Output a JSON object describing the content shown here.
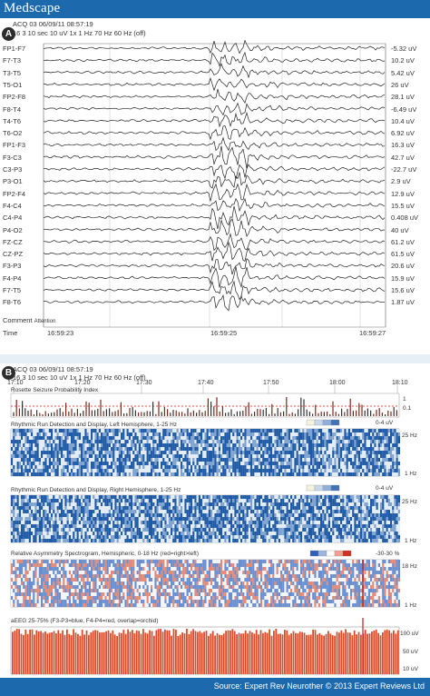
{
  "brand": {
    "logo": "Medscape"
  },
  "panelA": {
    "label": "A",
    "header_line1": "ACQ 03     06/09/11 08:57:19",
    "header_line2": "16  3  10 sec  10 uV  1x  1 Hz  70 Hz  60 Hz  (off)",
    "channels": [
      {
        "name": "FP1-F7",
        "value": "-5.32 uV"
      },
      {
        "name": "F7-T3",
        "value": "10.2 uV"
      },
      {
        "name": "T3-T5",
        "value": "5.42 uV"
      },
      {
        "name": "T5-O1",
        "value": "26 uV"
      },
      {
        "name": "FP2-F8",
        "value": "28.1 uV"
      },
      {
        "name": "F8-T4",
        "value": "-6.49 uV"
      },
      {
        "name": "T4-T6",
        "value": "10.4 uV"
      },
      {
        "name": "T6-O2",
        "value": "6.92 uV"
      },
      {
        "name": "FP1-F3",
        "value": "16.3 uV"
      },
      {
        "name": "F3-C3",
        "value": "42.7 uV"
      },
      {
        "name": "C3-P3",
        "value": "-22.7 uV"
      },
      {
        "name": "P3-O1",
        "value": "2.9 uV"
      },
      {
        "name": "FP2-F4",
        "value": "12.9 uV"
      },
      {
        "name": "F4-C4",
        "value": "15.5 uV"
      },
      {
        "name": "C4-P4",
        "value": "0.408 uV"
      },
      {
        "name": "P4-O2",
        "value": "40 uV"
      },
      {
        "name": "FZ-CZ",
        "value": "61.2 uV"
      },
      {
        "name": "CZ-PZ",
        "value": "61.5 uV"
      },
      {
        "name": "F3-P3",
        "value": "20.6 uV"
      },
      {
        "name": "F4-P4",
        "value": "15.9 uV"
      },
      {
        "name": "F7-T5",
        "value": "15.6 uV"
      },
      {
        "name": "F8-T6",
        "value": "1.87 uV"
      }
    ],
    "comment_label": "Comment",
    "comment_text": "Attention",
    "time_label": "Time",
    "times": [
      "16:59:23",
      "16:59:25",
      "16:59:27"
    ]
  },
  "panelB": {
    "label": "B",
    "header_line1": "ACQ 03     06/09/11 08:57:19",
    "header_line2": "16  3  10 sec  10 uV  1x  1 Hz  70 Hz  60 Hz  (off)",
    "ticks": [
      "17:10",
      "17:20",
      "17:30",
      "17:40",
      "17:50",
      "18:00",
      "18:10"
    ],
    "rosette_title": "Rosette Seizure Probability Index",
    "rosette_axis": [
      "1",
      "0.1"
    ],
    "rhythmic_left_title": "Rhythmic Run Detection and Display, Left Hemisphere, 1-25 Hz",
    "rhythmic_right_title": "Rhythmic Run Detection and Display, Right Hemisphere, 1-25 Hz",
    "rhythmic_legend": "0-4 uV",
    "freq_top": "25 Hz",
    "freq_bottom": "1 Hz",
    "asym_title": "Relative Asymmetry Spectrogram, Hemispheric, 0-18 Hz (red=right>left)",
    "asym_legend": "-30-30 %",
    "asym_top": "18 Hz",
    "asym_bottom": "1 Hz",
    "aeeg_title": "aEEG 25-75% (F3-P3=blue, F4-P4=red, overlap=orchid)",
    "aeeg_axis": [
      "100 uV",
      "50 uV",
      "10 uV"
    ],
    "colors": {
      "spectro_dark": "#1f5aa6",
      "spectro_light": "#dfe9f4",
      "aeeg_red": "#e04a2a",
      "threshold": "#d02020"
    }
  },
  "footer": {
    "source": "Source: Expert Rev Neurother © 2013 Expert Reviews Ltd"
  }
}
